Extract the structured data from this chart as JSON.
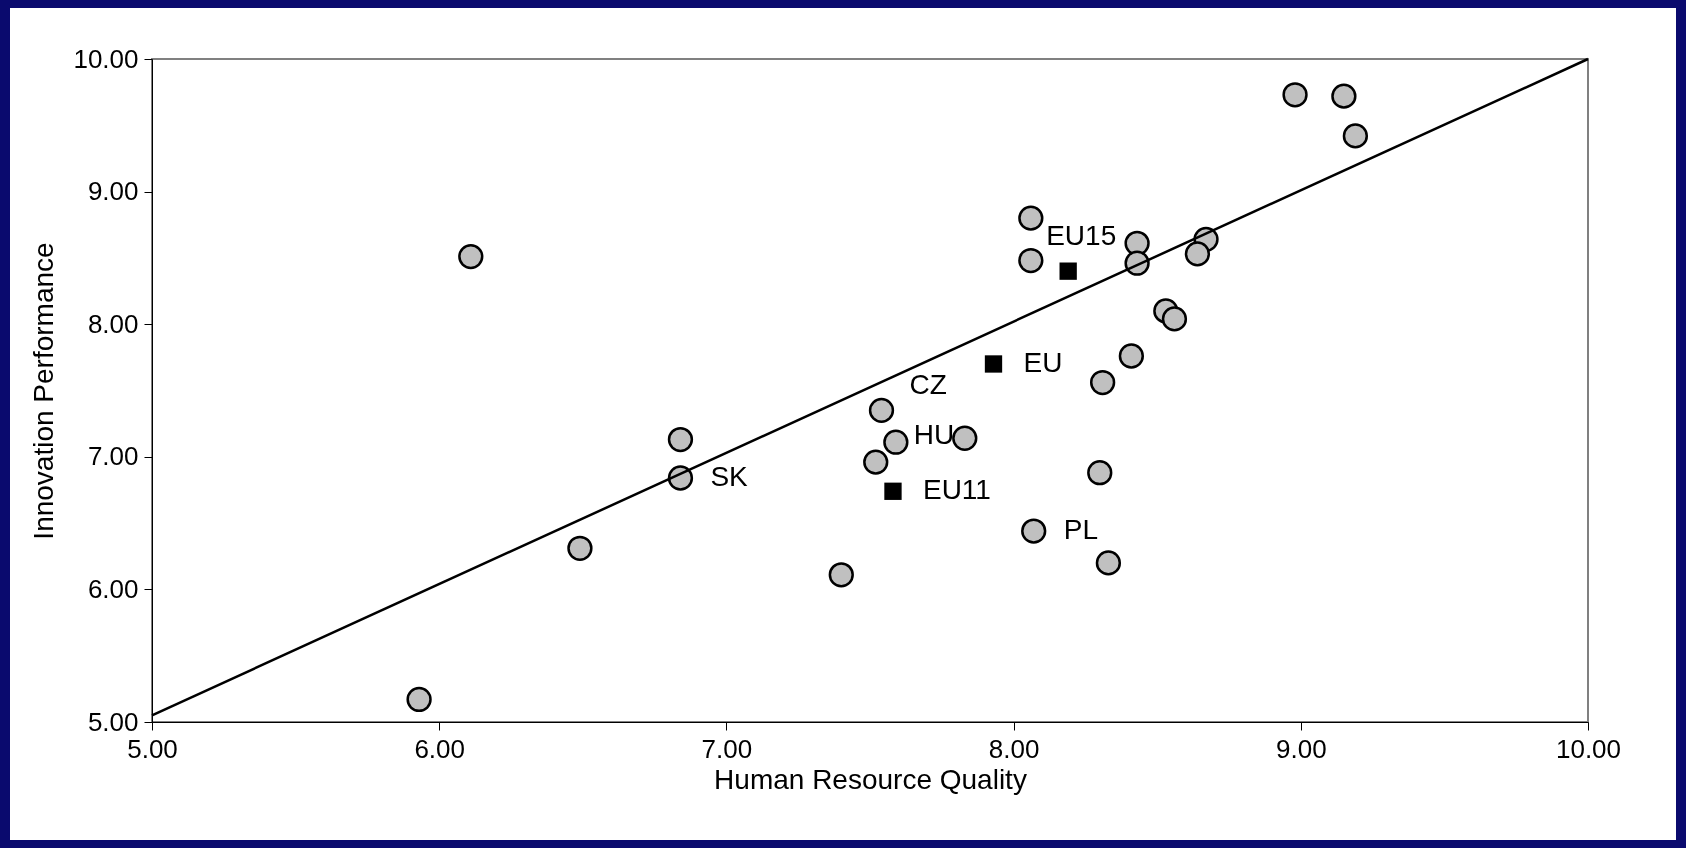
{
  "chart_data": {
    "type": "scatter",
    "xlabel": "Human Resource Quality",
    "ylabel": "Innovation Performance",
    "xlim": [
      5,
      10
    ],
    "ylim": [
      5,
      10
    ],
    "xticks": [
      {
        "value": 5,
        "label": "5.00"
      },
      {
        "value": 6,
        "label": "6.00"
      },
      {
        "value": 7,
        "label": "7.00"
      },
      {
        "value": 8,
        "label": "8.00"
      },
      {
        "value": 9,
        "label": "9.00"
      },
      {
        "value": 10,
        "label": "10.00"
      }
    ],
    "yticks": [
      {
        "value": 5,
        "label": "5.00"
      },
      {
        "value": 6,
        "label": "6.00"
      },
      {
        "value": 7,
        "label": "7.00"
      },
      {
        "value": 8,
        "label": "8.00"
      },
      {
        "value": 9,
        "label": "9.00"
      },
      {
        "value": 10,
        "label": "10.00"
      }
    ],
    "grid": false,
    "series": [
      {
        "marker": "circle",
        "color": "#c0c0c0",
        "x": [
          6.11,
          8.06,
          8.06,
          8.43,
          8.43,
          8.67,
          8.64,
          8.98,
          9.15,
          9.19,
          8.53,
          8.56,
          8.41,
          8.31,
          8.3,
          8.07,
          8.33,
          7.54,
          7.59,
          7.83,
          7.52,
          7.4,
          6.84,
          6.84,
          6.49,
          5.93
        ],
        "values": [
          8.51,
          8.8,
          8.48,
          8.61,
          8.46,
          8.64,
          8.53,
          9.73,
          9.72,
          9.42,
          8.1,
          8.04,
          7.76,
          7.56,
          6.88,
          6.44,
          6.2,
          7.35,
          7.11,
          7.14,
          6.96,
          6.11,
          7.13,
          6.84,
          6.31,
          5.17
        ]
      },
      {
        "marker": "square",
        "color": "#000000",
        "x": [
          8.19,
          7.93,
          7.58
        ],
        "values": [
          8.4,
          7.7,
          6.74
        ]
      },
      {
        "type": "line",
        "color": "#000000",
        "line_style": "solid",
        "x": [
          5,
          10
        ],
        "values": [
          5.05,
          10.0
        ]
      }
    ],
    "annotations": [
      {
        "text": "EU15",
        "x": 8.19,
        "y": 8.4
      },
      {
        "text": "EU",
        "x": 7.93,
        "y": 7.7
      },
      {
        "text": "CZ",
        "x": 7.54,
        "y": 7.35
      },
      {
        "text": "HU",
        "x": 7.59,
        "y": 7.11
      },
      {
        "text": "SK",
        "x": 6.84,
        "y": 6.84
      },
      {
        "text": "EU11",
        "x": 7.58,
        "y": 6.74
      },
      {
        "text": "PL",
        "x": 8.07,
        "y": 6.44
      }
    ]
  }
}
